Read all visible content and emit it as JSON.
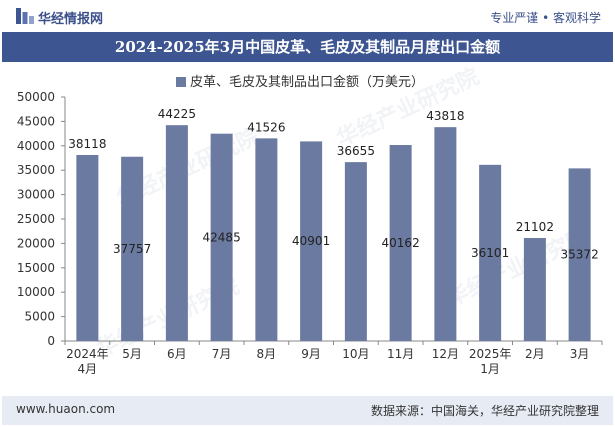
{
  "header": {
    "brand": "华经情报网",
    "tagline": "专业严谨 • 客观科学"
  },
  "footer": {
    "website": "www.huaon.com",
    "source": "数据来源：中国海关，华经产业研究院整理"
  },
  "watermark": "华经产业研究院",
  "colors": {
    "bar": "#6b7aa1",
    "title_bg": "#3d5591",
    "footer_bg": "#e7ebf4",
    "brand": "#3b4f8a"
  },
  "chart_data": {
    "type": "bar",
    "title": "2024-2025年3月中国皮革、毛皮及其制品月度出口金额",
    "legend": "皮革、毛皮及其制品出口金额（万美元）",
    "legend_position": "top-center",
    "categories": [
      "2024年\n4月",
      "5月",
      "6月",
      "7月",
      "8月",
      "9月",
      "10月",
      "11月",
      "12月",
      "2025年\n1月",
      "2月",
      "3月"
    ],
    "values": [
      38118,
      37757,
      44225,
      42485,
      41526,
      40901,
      36655,
      40162,
      43818,
      36101,
      21102,
      35372
    ],
    "label_placement": [
      "above",
      "inside",
      "above",
      "inside",
      "above",
      "inside",
      "above",
      "inside",
      "above",
      "inside",
      "above",
      "inside"
    ],
    "ylim": [
      0,
      50000
    ],
    "yticks": [
      0,
      5000,
      10000,
      15000,
      20000,
      25000,
      30000,
      35000,
      40000,
      45000,
      50000
    ],
    "grid": false
  }
}
